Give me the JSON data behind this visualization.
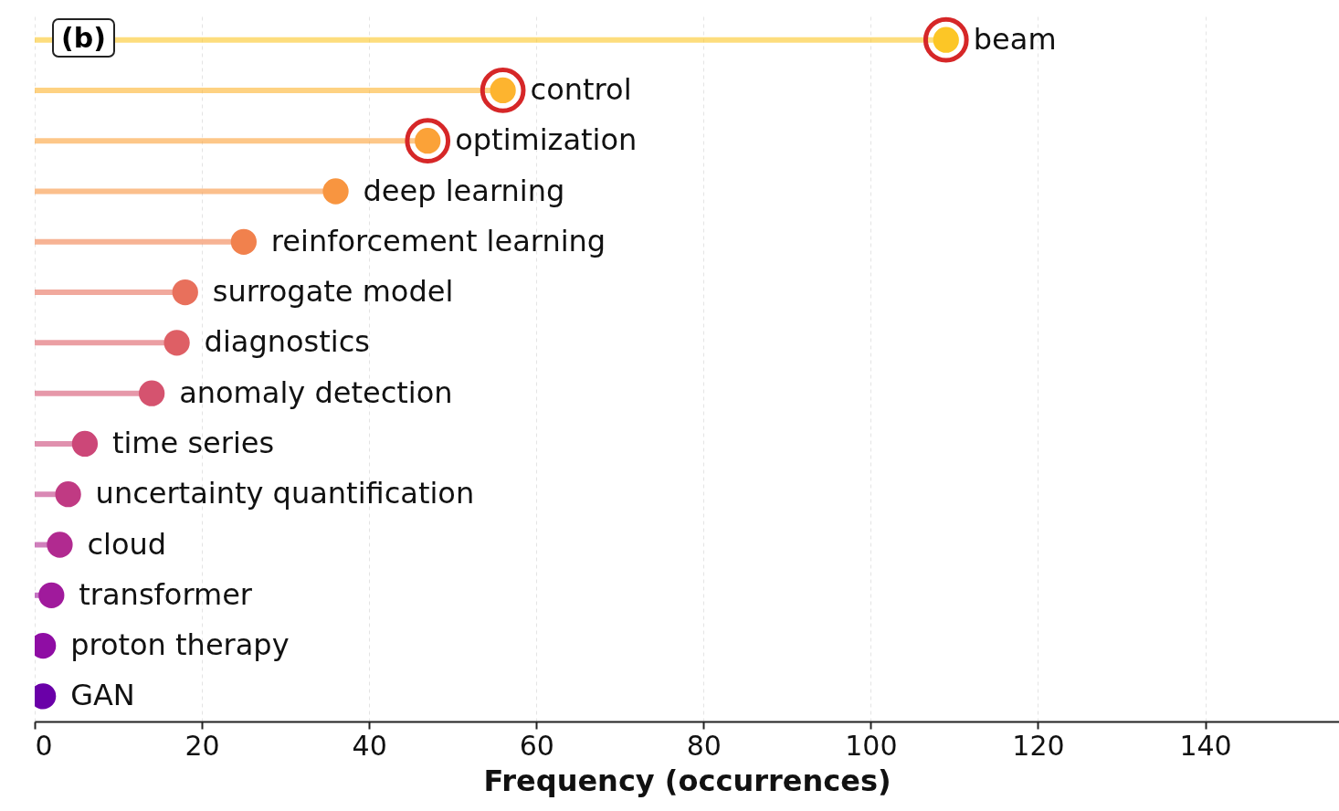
{
  "chart_data": {
    "type": "lollipop",
    "orientation": "horizontal",
    "xlabel": "Frequency (occurrences)",
    "categories": [
      "beam",
      "control",
      "optimization",
      "deep learning",
      "reinforcement learning",
      "surrogate model",
      "diagnostics",
      "anomaly detection",
      "time series",
      "uncertainty quantification",
      "cloud",
      "transformer",
      "proton therapy",
      "GAN"
    ],
    "series": [
      {
        "type": "lollipop",
        "values": [
          109,
          56,
          47,
          36,
          25,
          18,
          17,
          14,
          6,
          4,
          3,
          2,
          1,
          1
        ],
        "colors": [
          "#fcc626",
          "#fdb42f",
          "#fba238",
          "#f89540",
          "#f1814d",
          "#e8705c",
          "#de5f65",
          "#d5536f",
          "#cc4778",
          "#c03a83",
          "#b12a90",
          "#a01a9c",
          "#8f0da4",
          "#6a00a8"
        ]
      },
      {
        "type": "scatter",
        "marker": "circle",
        "color": "#d62728",
        "values": [
          109,
          56,
          47,
          null,
          null,
          null,
          null,
          null,
          null,
          null,
          null,
          null,
          null,
          null
        ]
      }
    ],
    "xlim": [
      0,
      156
    ],
    "xticks": [
      0,
      20,
      40,
      60,
      80,
      100,
      120,
      140
    ],
    "grid": "x",
    "tick_labels": "x",
    "annotations": [
      "(b)"
    ]
  }
}
